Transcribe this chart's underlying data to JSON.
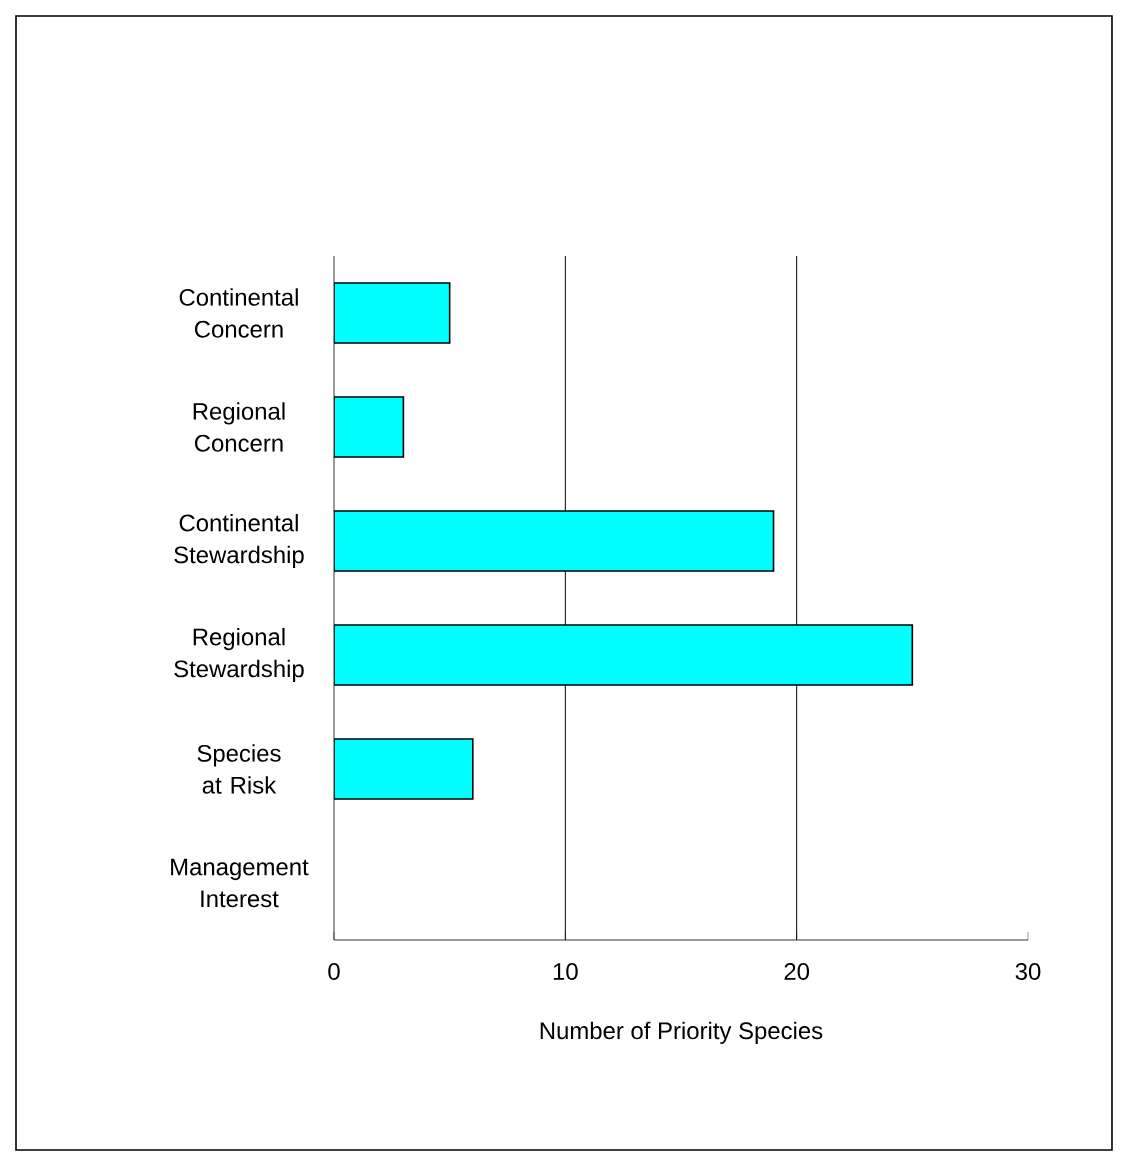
{
  "chart_data": {
    "type": "bar",
    "orientation": "horizontal",
    "xlabel": "Number of Priority Species",
    "categories": [
      "Continental Concern",
      "Regional Concern",
      "Continental Stewardship",
      "Regional Stewardship",
      "Species at Risk",
      "Management Interest"
    ],
    "values": [
      5,
      3,
      19,
      25,
      6,
      null
    ],
    "color": "#00ffff",
    "xlim": [
      0,
      30
    ],
    "xticks": [
      0,
      10,
      20,
      30
    ],
    "grid": "x"
  }
}
